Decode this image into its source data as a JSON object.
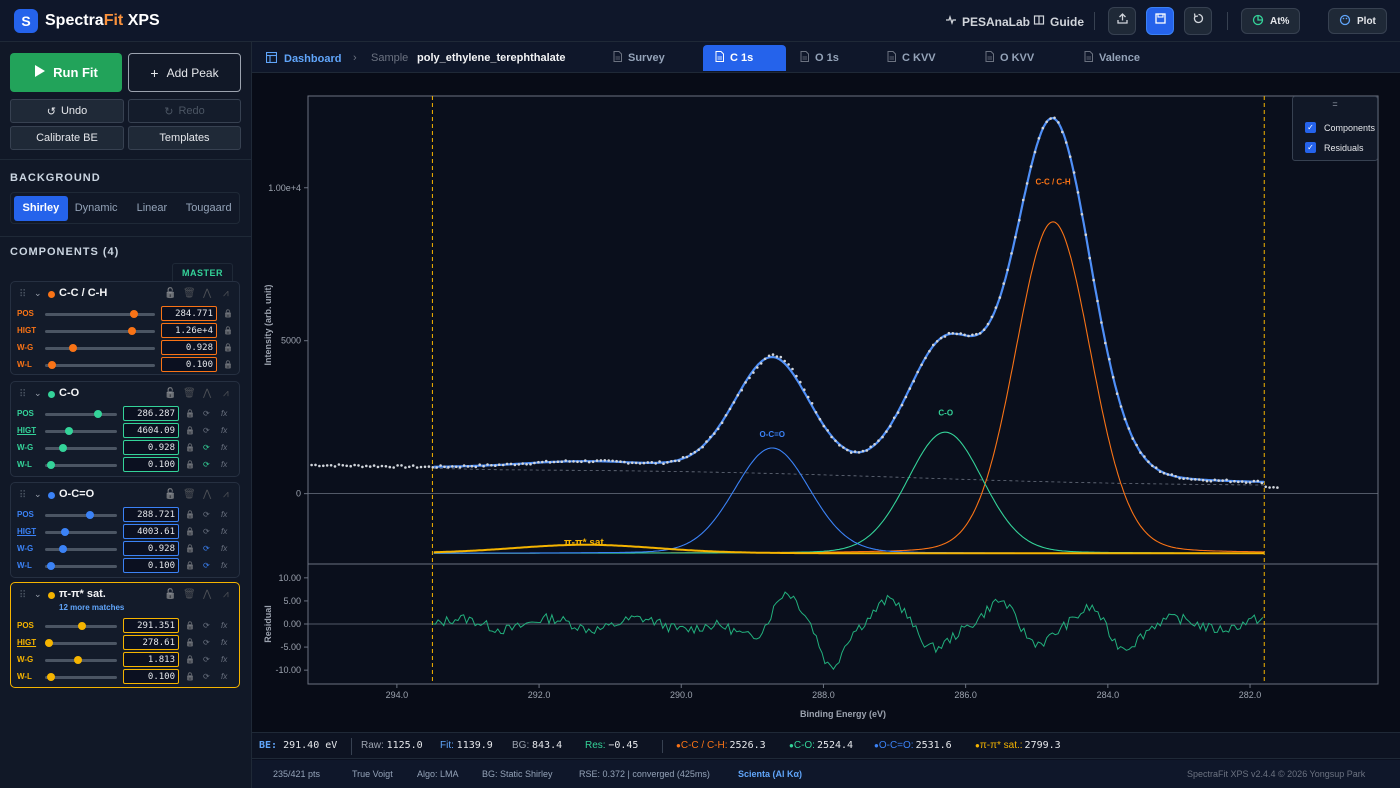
{
  "app": {
    "brand_prefix": "Spectra",
    "brand_fit": "Fit",
    "brand_suffix": "XPS",
    "logo_letter": "S"
  },
  "topbar": {
    "links": [
      {
        "label": "PESAnaLab",
        "icon": "pulse-icon"
      },
      {
        "label": "Guide",
        "icon": "book-icon"
      }
    ],
    "at_label": "At%",
    "plot_label": "Plot"
  },
  "left": {
    "run_fit": "Run Fit",
    "add_peak": "Add Peak",
    "undo": "Undo",
    "redo": "Redo",
    "calibrate": "Calibrate BE",
    "templates": "Templates",
    "background_title": "BACKGROUND",
    "background_tabs": [
      "Shirley",
      "Dynamic",
      "Linear",
      "Tougaard"
    ],
    "background_selected": "Shirley",
    "components_title": "COMPONENTS (4)",
    "master_tag": "MASTER",
    "components": [
      {
        "name": "C-C / C-H",
        "color": "#f97316",
        "sub": "",
        "params": [
          {
            "label": "POS",
            "value": "284.771",
            "fill": 0.81
          },
          {
            "label": "HIGT",
            "value": "1.26e+4",
            "fill": 0.79
          },
          {
            "label": "W-G",
            "value": "0.928",
            "fill": 0.25
          },
          {
            "label": "W-L",
            "value": "0.100",
            "fill": 0.06
          }
        ]
      },
      {
        "name": "C-O",
        "color": "#34d399",
        "sub": "",
        "params": [
          {
            "label": "POS",
            "value": "286.287",
            "fill": 0.73
          },
          {
            "label": "HIGT",
            "value": "4604.09",
            "fill": 0.33
          },
          {
            "label": "W-G",
            "value": "0.928",
            "fill": 0.25
          },
          {
            "label": "W-L",
            "value": "0.100",
            "fill": 0.08
          }
        ]
      },
      {
        "name": "O-C=O",
        "color": "#3b82f6",
        "sub": "",
        "params": [
          {
            "label": "POS",
            "value": "288.721",
            "fill": 0.63
          },
          {
            "label": "HIGT",
            "value": "4003.61",
            "fill": 0.28
          },
          {
            "label": "W-G",
            "value": "0.928",
            "fill": 0.25
          },
          {
            "label": "W-L",
            "value": "0.100",
            "fill": 0.08
          }
        ]
      },
      {
        "name": "π-π* sat.",
        "color": "#f5b400",
        "sub": "12 more matches",
        "params": [
          {
            "label": "POS",
            "value": "291.351",
            "fill": 0.52
          },
          {
            "label": "HIGT",
            "value": "278.61",
            "fill": 0.06
          },
          {
            "label": "W-G",
            "value": "1.813",
            "fill": 0.46
          },
          {
            "label": "W-L",
            "value": "0.100",
            "fill": 0.08
          }
        ]
      }
    ]
  },
  "tabs": {
    "dashboard": "Dashboard",
    "sample_label": "Sample",
    "sample_name": "poly_ethylene_terephthalate",
    "files": [
      "Survey",
      "C 1s",
      "O 1s",
      "C KVV",
      "O KVV",
      "Valence"
    ],
    "active": "C 1s"
  },
  "plot": {
    "legend_handle": "=",
    "legend": [
      "Components",
      "Residuals"
    ],
    "ylabel": "Intensity (arb. unit)",
    "residual_label": "Residual",
    "xlabel": "Binding Energy (eV)",
    "main_yticks": [
      "0",
      "5000",
      "1.00e+4"
    ],
    "residual_yticks": [
      "10.00",
      "5.00",
      "0.00",
      "-5.00",
      "-10.00"
    ],
    "xticks": [
      "294.0",
      "292.0",
      "290.0",
      "288.0",
      "286.0",
      "284.0",
      "282.0"
    ],
    "peak_labels": [
      "C-C / C-H",
      "C-O",
      "O-C=O",
      "π-π* sat."
    ]
  },
  "chart_data": {
    "type": "line",
    "x_range": [
      295.25,
      280.2
    ],
    "y_range": [
      -2300,
      13000
    ],
    "x_unit": "Binding Energy (eV)",
    "range_markers_x": [
      293.5,
      281.8
    ],
    "peaks": [
      {
        "name": "C-C / C-H",
        "center": 284.771,
        "height": 12600,
        "fwhm": 0.928,
        "color": "#f97316"
      },
      {
        "name": "C-O",
        "center": 286.287,
        "height": 4604.09,
        "fwhm": 0.928,
        "color": "#34d399"
      },
      {
        "name": "O-C=O",
        "center": 288.721,
        "height": 4003.61,
        "fwhm": 0.928,
        "color": "#3b82f6"
      },
      {
        "name": "π-π* sat.",
        "center": 291.351,
        "height": 278.61,
        "fwhm": 1.813,
        "color": "#f5b400"
      }
    ],
    "residual_range": [
      -13,
      13
    ],
    "components_visible": true,
    "residuals_visible": true
  },
  "status": {
    "be_label": "BE:",
    "be_value": "291.40 eV",
    "raw_label": "Raw:",
    "raw_value": "1125.0",
    "fit_label": "Fit:",
    "fit_value": "1139.9",
    "bg_label": "BG:",
    "bg_value": "843.4",
    "res_label": "Res:",
    "res_value": "−0.45",
    "components": [
      {
        "name": "C-C / C-H:",
        "value": "2526.3",
        "color": "#f97316"
      },
      {
        "name": "C-O:",
        "value": "2524.4",
        "color": "#34d399"
      },
      {
        "name": "O-C=O:",
        "value": "2531.6",
        "color": "#3b82f6"
      },
      {
        "name": "π-π* sat.:",
        "value": "2799.3",
        "color": "#f5b400"
      }
    ]
  },
  "footer": {
    "pts": "235/421 pts",
    "lineshape": "True Voigt",
    "algo": "Algo: LMA",
    "bg": "BG: Static Shirley",
    "rse": "RSE: 0.372 | converged (425ms)",
    "source": "Scienta (Al Kα)",
    "version": "SpectraFit XPS v2.4.4 © 2026 Yongsup Park"
  }
}
